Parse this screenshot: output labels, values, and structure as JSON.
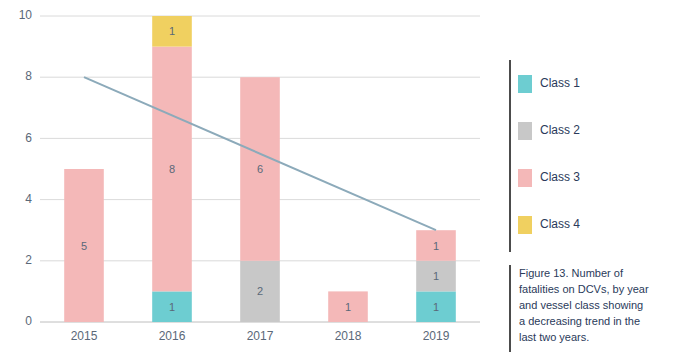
{
  "chart_data": {
    "type": "bar",
    "stacked": true,
    "data_labels": true,
    "grid": true,
    "categories": [
      "2015",
      "2016",
      "2017",
      "2018",
      "2019"
    ],
    "series": [
      {
        "name": "Class 1",
        "color": "#6dcdd1",
        "values": [
          0,
          1,
          0,
          0,
          1
        ]
      },
      {
        "name": "Class 2",
        "color": "#c8c8c8",
        "values": [
          0,
          0,
          2,
          0,
          1
        ]
      },
      {
        "name": "Class 3",
        "color": "#f4b8b8",
        "values": [
          5,
          8,
          6,
          1,
          1
        ]
      },
      {
        "name": "Class 4",
        "color": "#f0d060",
        "values": [
          0,
          1,
          0,
          0,
          0
        ]
      }
    ],
    "trend_line": {
      "type": "line",
      "color": "#8caaba",
      "values": [
        8,
        3
      ]
    },
    "ylim": [
      0,
      10
    ],
    "yticks": [
      0,
      2,
      4,
      6,
      8,
      10
    ],
    "caption": "Figure 13. Number of\nfatalities on DCVs, by year\nand vessel class showing\na decreasing trend in the\nlast two years."
  }
}
